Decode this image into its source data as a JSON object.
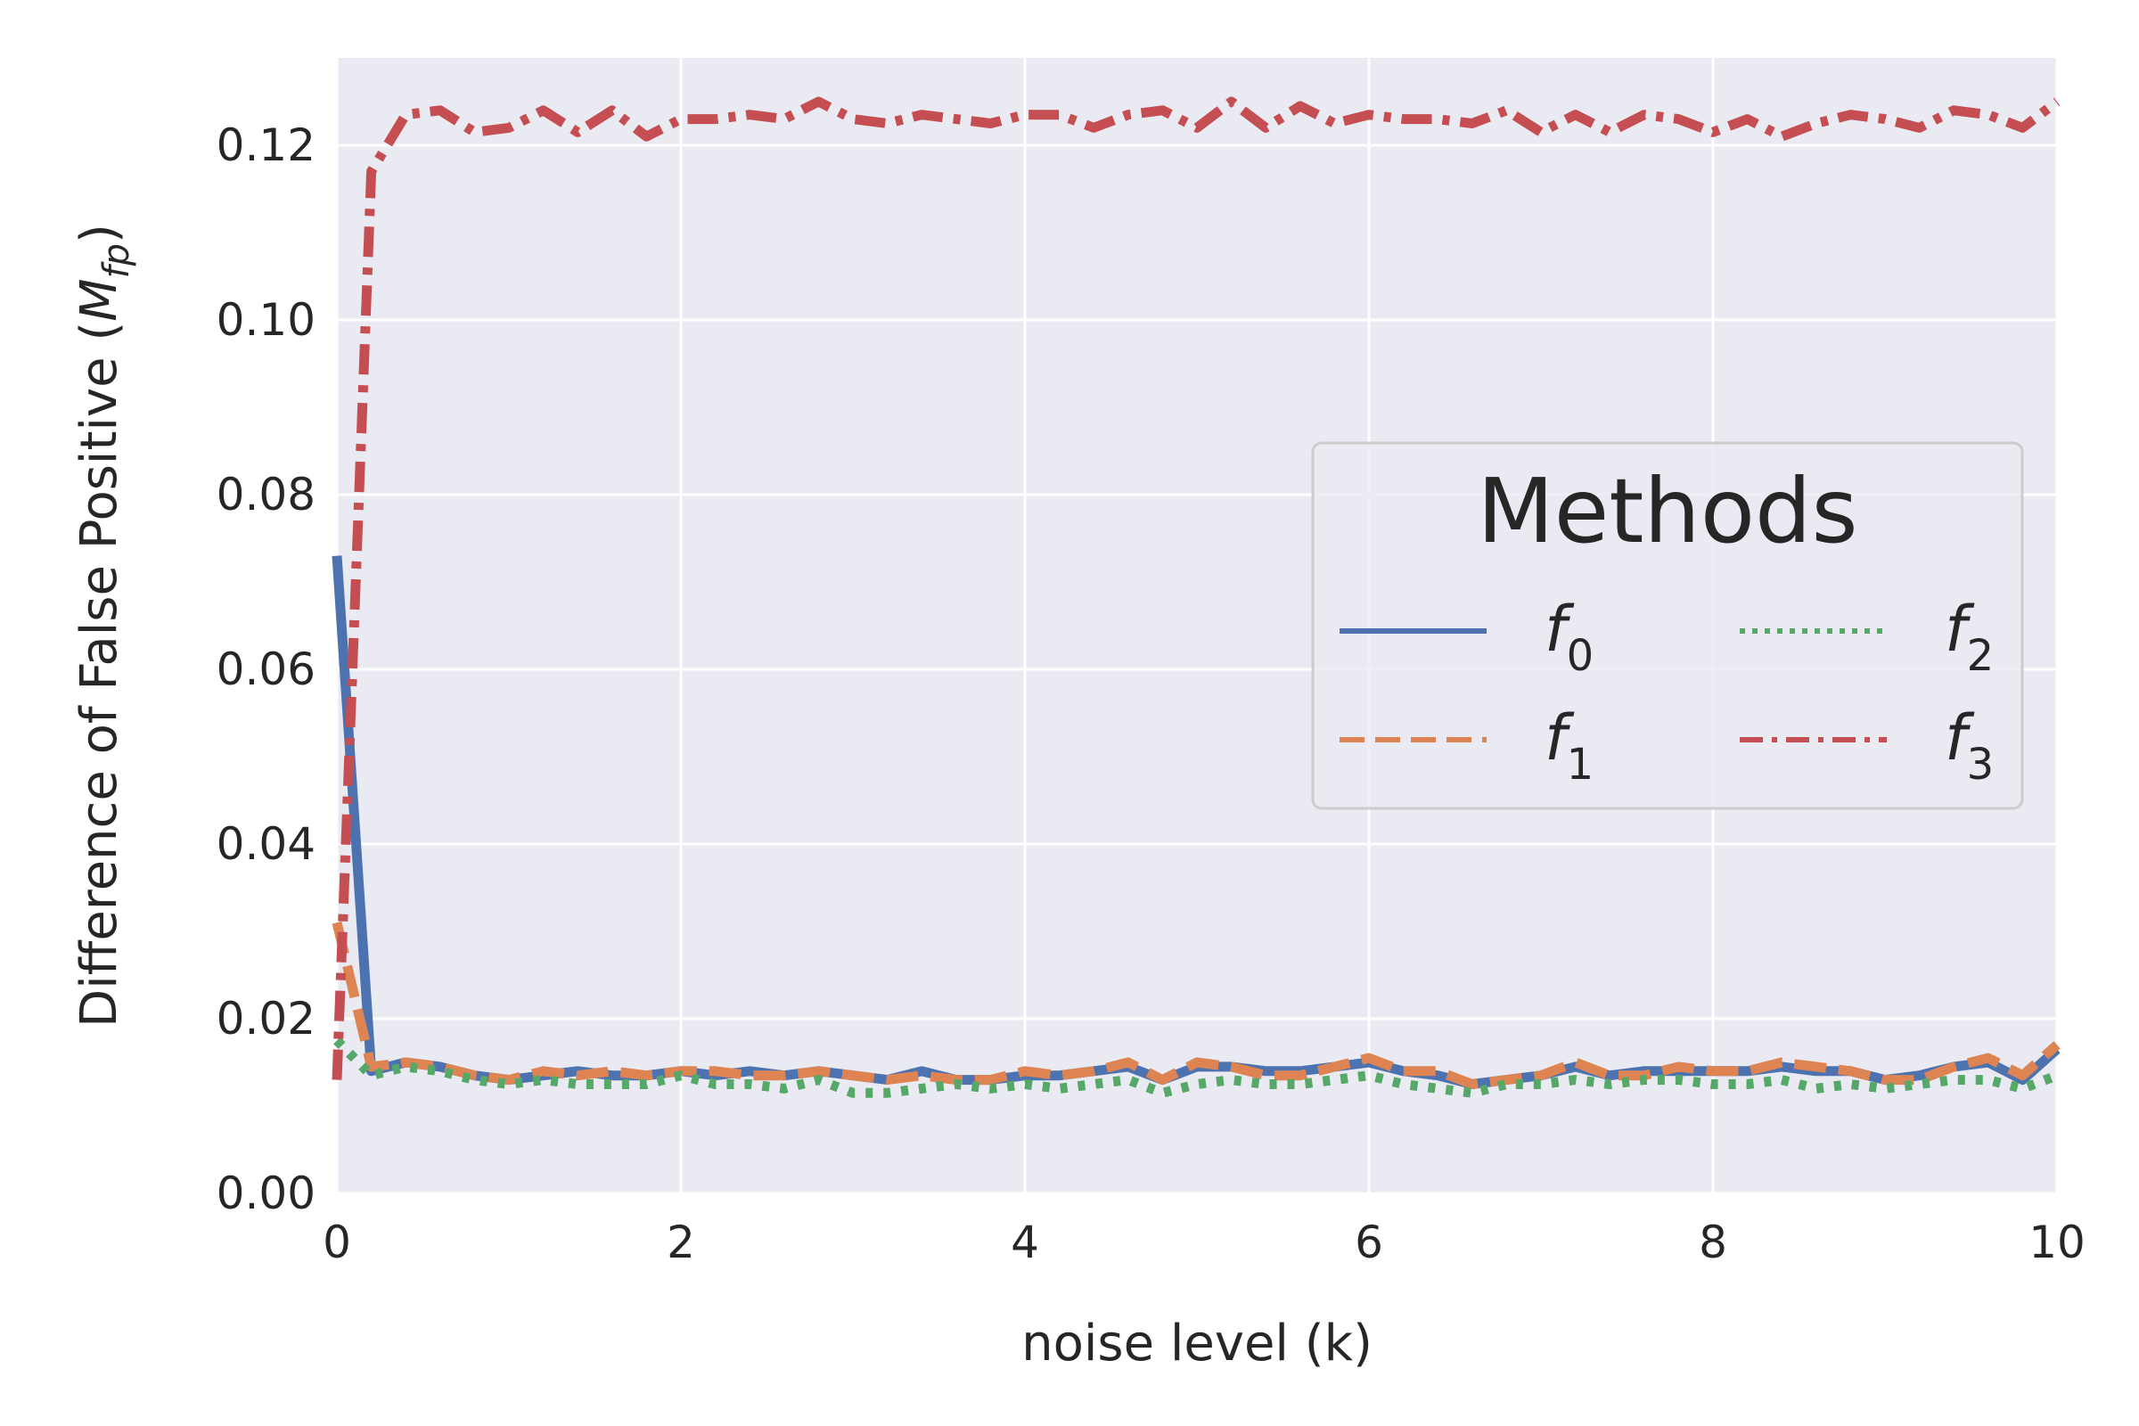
{
  "chart_data": {
    "type": "line",
    "title": "",
    "xlabel": "noise level (k)",
    "ylabel_main": "Difference of False Positive (",
    "ylabel_sym": "M",
    "ylabel_sub": "fp",
    "ylabel_close": ")",
    "xlim": [
      0,
      10
    ],
    "ylim": [
      0,
      0.13
    ],
    "xticks": [
      0,
      2,
      4,
      6,
      8,
      10
    ],
    "xtick_labels": [
      "0",
      "2",
      "4",
      "6",
      "8",
      "10"
    ],
    "yticks": [
      0,
      0.02,
      0.04,
      0.06,
      0.08,
      0.1,
      0.12
    ],
    "ytick_labels": [
      "0.00",
      "0.02",
      "0.04",
      "0.06",
      "0.08",
      "0.10",
      "0.12"
    ],
    "grid": true,
    "legend": {
      "title": "Methods",
      "placement": "center-right",
      "columns": 2
    },
    "x": [
      0.0,
      0.2,
      0.4,
      0.6,
      0.8,
      1.0,
      1.2,
      1.4,
      1.6,
      1.8,
      2.0,
      2.2,
      2.4,
      2.6,
      2.8,
      3.0,
      3.2,
      3.4,
      3.6,
      3.8,
      4.0,
      4.2,
      4.4,
      4.6,
      4.8,
      5.0,
      5.2,
      5.4,
      5.6,
      5.8,
      6.0,
      6.2,
      6.4,
      6.6,
      6.8,
      7.0,
      7.2,
      7.4,
      7.6,
      7.8,
      8.0,
      8.2,
      8.4,
      8.6,
      8.8,
      9.0,
      9.2,
      9.4,
      9.6,
      9.8,
      10.0
    ],
    "series": [
      {
        "name": "f",
        "sub": "0",
        "color": "#4c72b0",
        "dash": "solid",
        "values": [
          0.073,
          0.014,
          0.015,
          0.0145,
          0.0135,
          0.013,
          0.0135,
          0.014,
          0.0135,
          0.0135,
          0.014,
          0.0135,
          0.014,
          0.0135,
          0.014,
          0.0135,
          0.013,
          0.014,
          0.013,
          0.013,
          0.0135,
          0.0135,
          0.014,
          0.0145,
          0.013,
          0.0145,
          0.0145,
          0.014,
          0.014,
          0.0145,
          0.015,
          0.014,
          0.0135,
          0.0125,
          0.013,
          0.0135,
          0.0145,
          0.0135,
          0.014,
          0.014,
          0.014,
          0.014,
          0.0145,
          0.014,
          0.014,
          0.013,
          0.0135,
          0.0145,
          0.015,
          0.013,
          0.0165
        ]
      },
      {
        "name": "f",
        "sub": "1",
        "color": "#dd8452",
        "dash": "dashed",
        "values": [
          0.031,
          0.0145,
          0.015,
          0.0145,
          0.0135,
          0.013,
          0.014,
          0.0135,
          0.014,
          0.0135,
          0.014,
          0.014,
          0.0135,
          0.0135,
          0.014,
          0.0135,
          0.013,
          0.0135,
          0.013,
          0.013,
          0.014,
          0.0135,
          0.014,
          0.015,
          0.013,
          0.015,
          0.0145,
          0.0135,
          0.0135,
          0.0145,
          0.0155,
          0.014,
          0.014,
          0.0125,
          0.013,
          0.0135,
          0.015,
          0.0135,
          0.0135,
          0.0145,
          0.014,
          0.014,
          0.015,
          0.0145,
          0.014,
          0.013,
          0.013,
          0.0145,
          0.0155,
          0.0135,
          0.017
        ]
      },
      {
        "name": "f",
        "sub": "2",
        "color": "#55a868",
        "dash": "dotted",
        "values": [
          0.0175,
          0.0135,
          0.0145,
          0.014,
          0.013,
          0.0125,
          0.013,
          0.0125,
          0.0125,
          0.0125,
          0.0135,
          0.0125,
          0.0125,
          0.012,
          0.013,
          0.0115,
          0.0115,
          0.012,
          0.0125,
          0.012,
          0.0125,
          0.012,
          0.0125,
          0.013,
          0.0115,
          0.0125,
          0.013,
          0.0125,
          0.0125,
          0.013,
          0.0135,
          0.0125,
          0.012,
          0.0115,
          0.0125,
          0.0125,
          0.013,
          0.0125,
          0.013,
          0.013,
          0.0125,
          0.0125,
          0.013,
          0.012,
          0.0125,
          0.012,
          0.0125,
          0.013,
          0.013,
          0.012,
          0.0135
        ]
      },
      {
        "name": "f",
        "sub": "3",
        "color": "#c44e52",
        "dash": "dashdot",
        "values": [
          0.013,
          0.117,
          0.1235,
          0.124,
          0.1215,
          0.122,
          0.124,
          0.1215,
          0.124,
          0.121,
          0.123,
          0.123,
          0.1235,
          0.123,
          0.125,
          0.123,
          0.1225,
          0.1235,
          0.123,
          0.1225,
          0.1235,
          0.1235,
          0.122,
          0.1235,
          0.124,
          0.122,
          0.125,
          0.122,
          0.1245,
          0.1225,
          0.1235,
          0.123,
          0.123,
          0.1225,
          0.124,
          0.1215,
          0.1235,
          0.1215,
          0.1235,
          0.123,
          0.1215,
          0.123,
          0.121,
          0.1225,
          0.1235,
          0.123,
          0.122,
          0.124,
          0.1235,
          0.122,
          0.125
        ]
      }
    ]
  }
}
